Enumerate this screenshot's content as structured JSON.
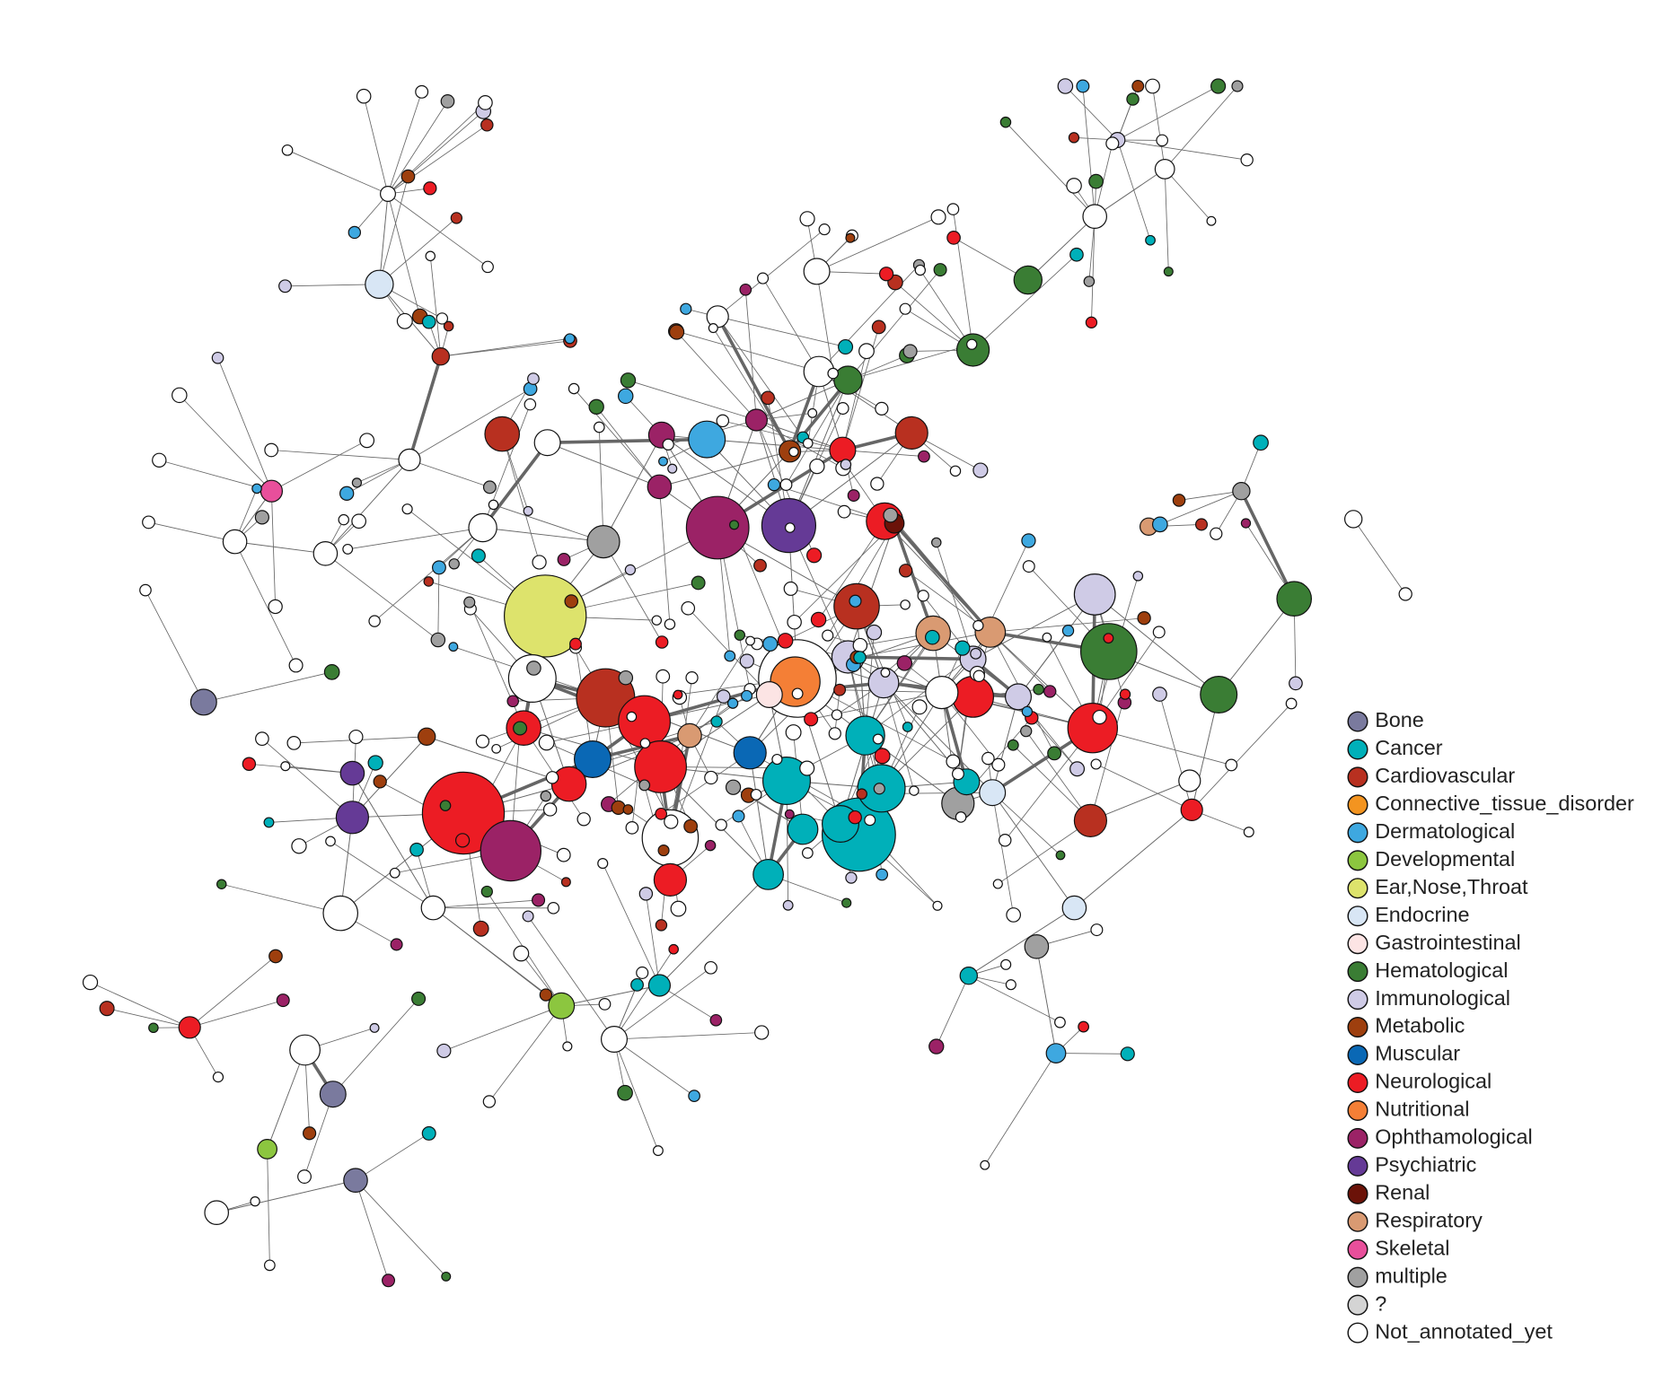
{
  "legend": [
    {
      "label": "Bone",
      "color": "#7a7a9e"
    },
    {
      "label": "Cancer",
      "color": "#00b0b9"
    },
    {
      "label": "Cardiovascular",
      "color": "#b83020"
    },
    {
      "label": "Connective_tissue_disorder",
      "color": "#f39420"
    },
    {
      "label": "Dermatological",
      "color": "#3ea8e0"
    },
    {
      "label": "Developmental",
      "color": "#8cc63f"
    },
    {
      "label": "Ear,Nose,Throat",
      "color": "#dde36c"
    },
    {
      "label": "Endocrine",
      "color": "#d8e6f5"
    },
    {
      "label": "Gastrointestinal",
      "color": "#fce4e4"
    },
    {
      "label": "Hematological",
      "color": "#3a7d34"
    },
    {
      "label": "Immunological",
      "color": "#cfcbe6"
    },
    {
      "label": "Metabolic",
      "color": "#9e3f0e"
    },
    {
      "label": "Muscular",
      "color": "#0a68b5"
    },
    {
      "label": "Neurological",
      "color": "#ec1c24"
    },
    {
      "label": "Nutritional",
      "color": "#f47f36"
    },
    {
      "label": "Ophthamological",
      "color": "#9b2266"
    },
    {
      "label": "Psychiatric",
      "color": "#653a96"
    },
    {
      "label": "Renal",
      "color": "#6b1208"
    },
    {
      "label": "Respiratory",
      "color": "#d99a72"
    },
    {
      "label": "Skeletal",
      "color": "#e84f9b"
    },
    {
      "label": "multiple",
      "color": "#a0a0a0"
    },
    {
      "label": "?",
      "color": "#d4d4d4"
    },
    {
      "label": "Not_annotated_yet",
      "color": "#ffffff"
    }
  ]
}
